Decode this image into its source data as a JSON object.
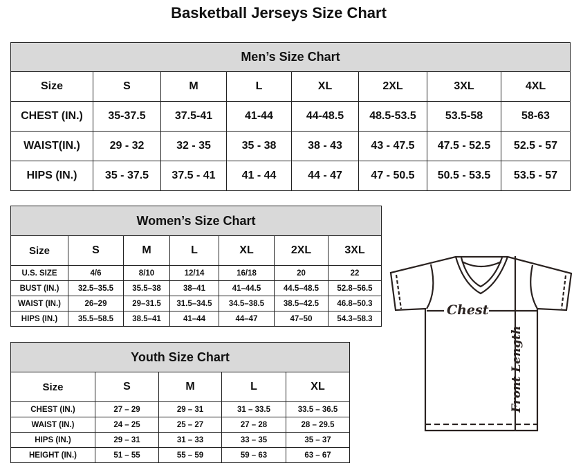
{
  "title": "Basketball Jerseys Size Chart",
  "mens": {
    "heading": "Men’s Size Chart",
    "header": [
      "Size",
      "S",
      "M",
      "L",
      "XL",
      "2XL",
      "3XL",
      "4XL"
    ],
    "rows": [
      [
        "CHEST (IN.)",
        "35-37.5",
        "37.5-41",
        "41-44",
        "44-48.5",
        "48.5-53.5",
        "53.5-58",
        "58-63"
      ],
      [
        "WAIST(IN.)",
        "29 - 32",
        "32 - 35",
        "35 - 38",
        "38 - 43",
        "43 - 47.5",
        "47.5 - 52.5",
        "52.5 - 57"
      ],
      [
        "HIPS (IN.)",
        "35 - 37.5",
        "37.5 - 41",
        "41 - 44",
        "44 - 47",
        "47 - 50.5",
        "50.5 - 53.5",
        "53.5 - 57"
      ]
    ]
  },
  "womens": {
    "heading": "Women’s Size Chart",
    "header": [
      "Size",
      "S",
      "M",
      "L",
      "XL",
      "2XL",
      "3XL"
    ],
    "rows": [
      [
        "U.S. SIZE",
        "4/6",
        "8/10",
        "12/14",
        "16/18",
        "20",
        "22"
      ],
      [
        "BUST (IN.)",
        "32.5–35.5",
        "35.5–38",
        "38–41",
        "41–44.5",
        "44.5–48.5",
        "52.8–56.5"
      ],
      [
        "WAIST (IN.)",
        "26–29",
        "29–31.5",
        "31.5–34.5",
        "34.5–38.5",
        "38.5–42.5",
        "46.8–50.3"
      ],
      [
        "HIPS (IN.)",
        "35.5–58.5",
        "38.5–41",
        "41–44",
        "44–47",
        "47–50",
        "54.3–58.3"
      ]
    ]
  },
  "youth": {
    "heading": "Youth Size Chart",
    "header": [
      "Size",
      "S",
      "M",
      "L",
      "XL"
    ],
    "rows": [
      [
        "CHEST (IN.)",
        "27 – 29",
        "29 – 31",
        "31 – 33.5",
        "33.5 – 36.5"
      ],
      [
        "WAIST (IN.)",
        "24 – 25",
        "25 – 27",
        "27 – 28",
        "28 – 29.5"
      ],
      [
        "HIPS (IN.)",
        "29 – 31",
        "31 – 33",
        "33 – 35",
        "35 – 37"
      ],
      [
        "HEIGHT (IN.)",
        "51 – 55",
        "55 – 59",
        "59 – 63",
        "63 – 67"
      ]
    ]
  },
  "diagram": {
    "chest_label": "Chest",
    "length_label": "Front Length"
  }
}
